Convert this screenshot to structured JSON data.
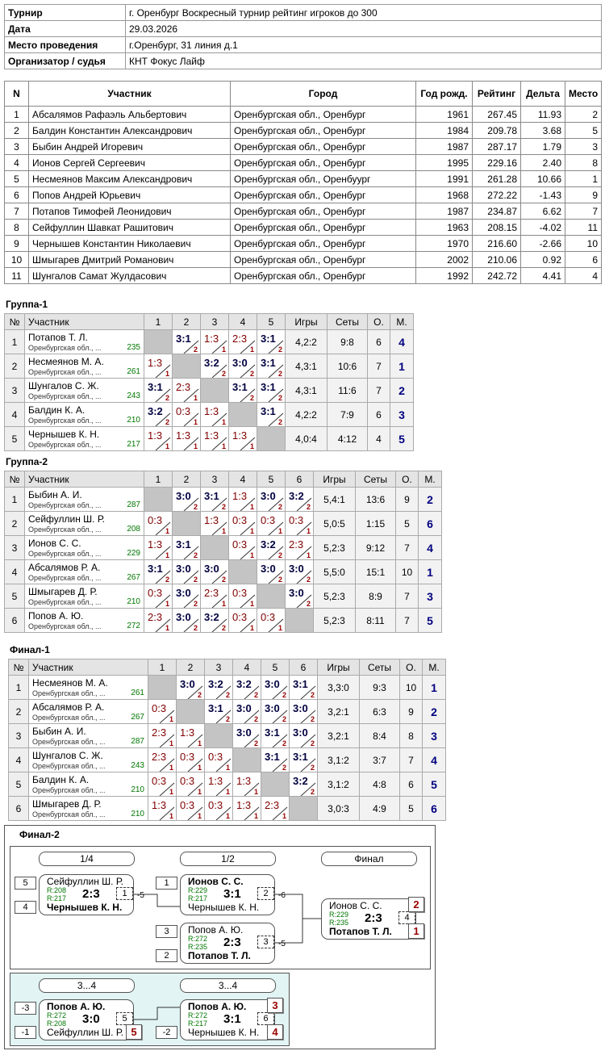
{
  "info": {
    "rows": [
      [
        "Турнир",
        "г. Оренбург Воскресный турнир рейтинг игроков до 300"
      ],
      [
        "Дата",
        "29.03.2026"
      ],
      [
        "Место проведения",
        "г.Оренбург, 31 линия д.1"
      ],
      [
        "Организатор / судья",
        "КНТ Фокус Лайф"
      ]
    ]
  },
  "participants": {
    "headers": [
      "N",
      "Участник",
      "Город",
      "Год рожд.",
      "Рейтинг",
      "Дельта",
      "Место"
    ],
    "rows": [
      [
        1,
        "Абсалямов Рафаэль Альбертович",
        "Оренбургская обл., Оренбург",
        1961,
        "267.45",
        "11.93",
        2
      ],
      [
        2,
        "Балдин Константин Александрович",
        "Оренбургская обл., Оренбург",
        1984,
        "209.78",
        "3.68",
        5
      ],
      [
        3,
        "Быбин Андрей Игоревич",
        "Оренбургская обл., Оренбург",
        1987,
        "287.17",
        "1.79",
        3
      ],
      [
        4,
        "Ионов Сергей Сергеевич",
        "Оренбургская обл., Оренбург",
        1995,
        "229.16",
        "2.40",
        8
      ],
      [
        5,
        "Несмеянов Максим Александрович",
        "Оренбургская обл., Оренбуург",
        1991,
        "261.28",
        "10.66",
        1
      ],
      [
        6,
        "Попов Андрей Юрьевич",
        "Оренбургская обл., Оренбург",
        1968,
        "272.22",
        "-1.43",
        9
      ],
      [
        7,
        "Потапов Тимофей Леонидович",
        "Оренбургская обл., Оренбург",
        1987,
        "234.87",
        "6.62",
        7
      ],
      [
        8,
        "Сейфуллин Шавкат Рашитович",
        "Оренбургская обл., Оренбург",
        1963,
        "208.15",
        "-4.02",
        11
      ],
      [
        9,
        "Чернышев Константин Николаевич",
        "Оренбургская обл., Оренбург",
        1970,
        "216.60",
        "-2.66",
        10
      ],
      [
        10,
        "Шмыгарев Дмитрий Романович",
        "Оренбургская обл., Оренбург",
        2002,
        "210.06",
        "0.92",
        6
      ],
      [
        11,
        "Шунгалов Самат Жулдасович",
        "Оренбургская обл., Оренбург",
        1992,
        "242.72",
        "4.41",
        4
      ]
    ]
  },
  "groups": [
    {
      "title": "Группа-1",
      "headers": [
        "№",
        "Участник",
        "1",
        "2",
        "3",
        "4",
        "5",
        "Игры",
        "Сеты",
        "О.",
        "М."
      ],
      "rows": [
        {
          "n": 1,
          "name": "Потапов Т. Л.",
          "city": "Оренбургская обл., ...",
          "rating": 235,
          "results": [
            null,
            {
              "score": "3:1",
              "points": 2
            },
            {
              "score": "1:3",
              "points": 1
            },
            {
              "score": "2:3",
              "points": 1
            },
            {
              "score": "3:1",
              "points": 2
            }
          ],
          "games": "4,2:2",
          "sets": "9:8",
          "points": 6,
          "place": 4
        },
        {
          "n": 2,
          "name": "Несмеянов М. А.",
          "city": "Оренбургская обл., ...",
          "rating": 261,
          "results": [
            {
              "score": "1:3",
              "points": 1
            },
            null,
            {
              "score": "3:2",
              "points": 2
            },
            {
              "score": "3:0",
              "points": 2
            },
            {
              "score": "3:1",
              "points": 2
            }
          ],
          "games": "4,3:1",
          "sets": "10:6",
          "points": 7,
          "place": 1
        },
        {
          "n": 3,
          "name": "Шунгалов С. Ж.",
          "city": "Оренбургская обл., ...",
          "rating": 243,
          "results": [
            {
              "score": "3:1",
              "points": 2
            },
            {
              "score": "2:3",
              "points": 1
            },
            null,
            {
              "score": "3:1",
              "points": 2
            },
            {
              "score": "3:1",
              "points": 2
            }
          ],
          "games": "4,3:1",
          "sets": "11:6",
          "points": 7,
          "place": 2
        },
        {
          "n": 4,
          "name": "Балдин К. А.",
          "city": "Оренбургская обл., ...",
          "rating": 210,
          "results": [
            {
              "score": "3:2",
              "points": 2
            },
            {
              "score": "0:3",
              "points": 1
            },
            {
              "score": "1:3",
              "points": 1
            },
            null,
            {
              "score": "3:1",
              "points": 2
            }
          ],
          "games": "4,2:2",
          "sets": "7:9",
          "points": 6,
          "place": 3
        },
        {
          "n": 5,
          "name": "Чернышев К. Н.",
          "city": "Оренбургская обл., ...",
          "rating": 217,
          "results": [
            {
              "score": "1:3",
              "points": 1
            },
            {
              "score": "1:3",
              "points": 1
            },
            {
              "score": "1:3",
              "points": 1
            },
            {
              "score": "1:3",
              "points": 1
            },
            null
          ],
          "games": "4,0:4",
          "sets": "4:12",
          "points": 4,
          "place": 5
        }
      ]
    },
    {
      "title": "Группа-2",
      "headers": [
        "№",
        "Участник",
        "1",
        "2",
        "3",
        "4",
        "5",
        "6",
        "Игры",
        "Сеты",
        "О.",
        "М."
      ],
      "rows": [
        {
          "n": 1,
          "name": "Быбин А. И.",
          "city": "Оренбургская обл., ...",
          "rating": 287,
          "results": [
            null,
            {
              "score": "3:0",
              "points": 2
            },
            {
              "score": "3:1",
              "points": 2
            },
            {
              "score": "1:3",
              "points": 1
            },
            {
              "score": "3:0",
              "points": 2
            },
            {
              "score": "3:2",
              "points": 2
            }
          ],
          "games": "5,4:1",
          "sets": "13:6",
          "points": 9,
          "place": 2
        },
        {
          "n": 2,
          "name": "Сейфуллин Ш. Р.",
          "city": "Оренбургская обл., ...",
          "rating": 208,
          "results": [
            {
              "score": "0:3",
              "points": 1
            },
            null,
            {
              "score": "1:3",
              "points": 1
            },
            {
              "score": "0:3",
              "points": 1
            },
            {
              "score": "0:3",
              "points": 1
            },
            {
              "score": "0:3",
              "points": 1
            }
          ],
          "games": "5,0:5",
          "sets": "1:15",
          "points": 5,
          "place": 6
        },
        {
          "n": 3,
          "name": "Ионов С. С.",
          "city": "Оренбургская обл., ...",
          "rating": 229,
          "results": [
            {
              "score": "1:3",
              "points": 1
            },
            {
              "score": "3:1",
              "points": 2
            },
            null,
            {
              "score": "0:3",
              "points": 1
            },
            {
              "score": "3:2",
              "points": 2
            },
            {
              "score": "2:3",
              "points": 1
            }
          ],
          "games": "5,2:3",
          "sets": "9:12",
          "points": 7,
          "place": 4
        },
        {
          "n": 4,
          "name": "Абсалямов Р. А.",
          "city": "Оренбургская обл., ...",
          "rating": 267,
          "results": [
            {
              "score": "3:1",
              "points": 2
            },
            {
              "score": "3:0",
              "points": 2
            },
            {
              "score": "3:0",
              "points": 2
            },
            null,
            {
              "score": "3:0",
              "points": 2
            },
            {
              "score": "3:0",
              "points": 2
            }
          ],
          "games": "5,5:0",
          "sets": "15:1",
          "points": 10,
          "place": 1
        },
        {
          "n": 5,
          "name": "Шмыгарев Д. Р.",
          "city": "Оренбургская обл., ...",
          "rating": 210,
          "results": [
            {
              "score": "0:3",
              "points": 1
            },
            {
              "score": "3:0",
              "points": 2
            },
            {
              "score": "2:3",
              "points": 1
            },
            {
              "score": "0:3",
              "points": 1
            },
            null,
            {
              "score": "3:0",
              "points": 2
            }
          ],
          "games": "5,2:3",
          "sets": "8:9",
          "points": 7,
          "place": 3
        },
        {
          "n": 6,
          "name": "Попов А. Ю.",
          "city": "Оренбургская обл., ...",
          "rating": 272,
          "results": [
            {
              "score": "2:3",
              "points": 1
            },
            {
              "score": "3:0",
              "points": 2
            },
            {
              "score": "3:2",
              "points": 2
            },
            {
              "score": "0:3",
              "points": 1
            },
            {
              "score": "0:3",
              "points": 1
            },
            null
          ],
          "games": "5,2:3",
          "sets": "8:11",
          "points": 7,
          "place": 5
        }
      ]
    },
    {
      "title": "Финал-1",
      "headers": [
        "№",
        "Участник",
        "1",
        "2",
        "3",
        "4",
        "5",
        "6",
        "Игры",
        "Сеты",
        "О.",
        "М."
      ],
      "rows": [
        {
          "n": 1,
          "name": "Несмеянов М. А.",
          "city": "Оренбургская обл., ...",
          "rating": 261,
          "results": [
            null,
            {
              "score": "3:0",
              "points": 2
            },
            {
              "score": "3:2",
              "points": 2
            },
            {
              "score": "3:2",
              "points": 2
            },
            {
              "score": "3:0",
              "points": 2
            },
            {
              "score": "3:1",
              "points": 2
            }
          ],
          "games": "3,3:0",
          "sets": "9:3",
          "points": 10,
          "place": 1
        },
        {
          "n": 2,
          "name": "Абсалямов Р. А.",
          "city": "Оренбургская обл., ...",
          "rating": 267,
          "results": [
            {
              "score": "0:3",
              "points": 1
            },
            null,
            {
              "score": "3:1",
              "points": 2
            },
            {
              "score": "3:0",
              "points": 2
            },
            {
              "score": "3:0",
              "points": 2
            },
            {
              "score": "3:0",
              "points": 2
            }
          ],
          "games": "3,2:1",
          "sets": "6:3",
          "points": 9,
          "place": 2
        },
        {
          "n": 3,
          "name": "Быбин А. И.",
          "city": "Оренбургская обл., ...",
          "rating": 287,
          "results": [
            {
              "score": "2:3",
              "points": 1
            },
            {
              "score": "1:3",
              "points": 1
            },
            null,
            {
              "score": "3:0",
              "points": 2
            },
            {
              "score": "3:1",
              "points": 2
            },
            {
              "score": "3:0",
              "points": 2
            }
          ],
          "games": "3,2:1",
          "sets": "8:4",
          "points": 8,
          "place": 3
        },
        {
          "n": 4,
          "name": "Шунгалов С. Ж.",
          "city": "Оренбургская обл., ...",
          "rating": 243,
          "results": [
            {
              "score": "2:3",
              "points": 1
            },
            {
              "score": "0:3",
              "points": 1
            },
            {
              "score": "0:3",
              "points": 1
            },
            null,
            {
              "score": "3:1",
              "points": 2
            },
            {
              "score": "3:1",
              "points": 2
            }
          ],
          "games": "3,1:2",
          "sets": "3:7",
          "points": 7,
          "place": 4
        },
        {
          "n": 5,
          "name": "Балдин К. А.",
          "city": "Оренбургская обл., ...",
          "rating": 210,
          "results": [
            {
              "score": "0:3",
              "points": 1
            },
            {
              "score": "0:3",
              "points": 1
            },
            {
              "score": "1:3",
              "points": 1
            },
            {
              "score": "1:3",
              "points": 1
            },
            null,
            {
              "score": "3:2",
              "points": 2
            }
          ],
          "games": "3,1:2",
          "sets": "4:8",
          "points": 6,
          "place": 5
        },
        {
          "n": 6,
          "name": "Шмыгарев Д. Р.",
          "city": "Оренбургская обл., ...",
          "rating": 210,
          "results": [
            {
              "score": "1:3",
              "points": 1
            },
            {
              "score": "0:3",
              "points": 1
            },
            {
              "score": "0:3",
              "points": 1
            },
            {
              "score": "1:3",
              "points": 1
            },
            {
              "score": "2:3",
              "points": 1
            },
            null
          ],
          "games": "3,0:3",
          "sets": "4:9",
          "points": 5,
          "place": 6
        }
      ]
    }
  ],
  "final2": {
    "title": "Финал-2",
    "rounds": [
      "1/4",
      "1/2",
      "Финал",
      "3...4",
      "3...4"
    ],
    "matches": [
      {
        "no": 1,
        "seeds": [
          5,
          4
        ],
        "players": [
          "Сейфуллин Ш. Р.",
          "Чернышев К. Н."
        ],
        "ratings": [
          "R:208",
          "R:217"
        ],
        "score": "2:3",
        "loser_to": -5
      },
      {
        "no": 2,
        "seeds": [
          1,
          null
        ],
        "players": [
          "Ионов С. С.",
          "Чернышев К. Н."
        ],
        "ratings": [
          "R:229",
          "R:217"
        ],
        "score": "3:1",
        "loser_to": -6
      },
      {
        "no": 3,
        "seeds": [
          3,
          2
        ],
        "players": [
          "Попов А. Ю.",
          "Потапов Т. Л."
        ],
        "ratings": [
          "R:272",
          "R:235"
        ],
        "score": "2:3",
        "loser_to": -5
      },
      {
        "no": 4,
        "places": [
          2,
          1
        ],
        "players": [
          "Ионов С. С.",
          "Потапов Т. Л."
        ],
        "ratings": [
          "R:229",
          "R:235"
        ],
        "score": "2:3"
      },
      {
        "no": 5,
        "seeds": [
          -3,
          -1
        ],
        "places": [
          null,
          5
        ],
        "players": [
          "Попов А. Ю.",
          "Сейфуллин Ш. Р."
        ],
        "ratings": [
          "R:272",
          "R:208"
        ],
        "score": "3:0"
      },
      {
        "no": 6,
        "seeds": [
          null,
          -2
        ],
        "places": [
          3,
          4
        ],
        "players": [
          "Попов А. Ю.",
          "Чернышев К. Н."
        ],
        "ratings": [
          "R:272",
          "R:217"
        ],
        "score": "3:1"
      }
    ]
  }
}
